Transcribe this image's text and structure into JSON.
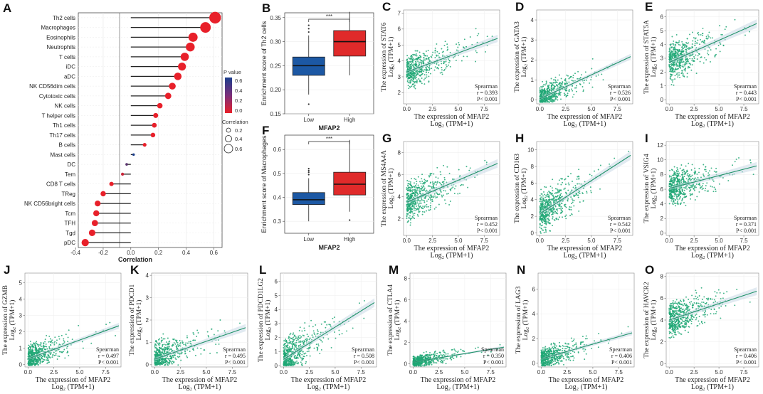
{
  "colors": {
    "point": "#1fa774",
    "trend": "#1f9268",
    "band": "#c8d9e6",
    "low_box": "#1c58a4",
    "high_box": "#e02a2a",
    "pval_low": "#e8202a",
    "pval_high": "#1b3e8c",
    "stem": "#222222"
  },
  "panel_a": {
    "letter": "A",
    "xlabel": "Correlation",
    "xticks": [
      "-0.4",
      "-0.2",
      "0.0",
      "0.2",
      "0.4",
      "0.6"
    ],
    "legend_pvalue_title": "P value",
    "legend_pvalue_ticks": [
      "0.6",
      "0.4",
      "0.2",
      "0.0"
    ],
    "legend_corr_title": "Correlation",
    "legend_corr_ticks": [
      "0.2",
      "0.4",
      "0.6"
    ]
  },
  "box_panels": [
    {
      "letter": "B",
      "ylabel": "Enrichment score of Th2 cells",
      "xlabel": "MFAP2",
      "yticks": [
        "0.15",
        "0.20",
        "0.25",
        "0.30",
        "0.35"
      ],
      "groups": [
        "Low",
        "High"
      ],
      "sig": "***"
    },
    {
      "letter": "F",
      "ylabel": "Enrichment score of Macrophages",
      "xlabel": "MFAP2",
      "yticks": [
        "0.3",
        "0.4",
        "0.5",
        "0.6"
      ],
      "groups": [
        "Low",
        "High"
      ],
      "sig": "***"
    }
  ],
  "scatter_common": {
    "xlabel": "The expression  of MFAP2",
    "unit": "Log₂ (TPM+1)",
    "ylabel_prefix": "The expression  of ",
    "method": "Spearman"
  },
  "scatter_panels": [
    {
      "letter": "C",
      "gene": "STAT6",
      "r": "r = 0.393",
      "p": "P< 0.001",
      "xticks": [
        "0.0",
        "2.5",
        "5.0",
        "7.5"
      ],
      "yticks": [
        "2",
        "3",
        "4",
        "5",
        "6",
        "7"
      ]
    },
    {
      "letter": "D",
      "gene": "GATA3",
      "r": "r = 0.526",
      "p": "P< 0.001",
      "xticks": [
        "0.0",
        "2.5",
        "5.0",
        "7.5"
      ],
      "yticks": [
        "0",
        "1",
        "2",
        "3",
        "4"
      ]
    },
    {
      "letter": "E",
      "gene": "STAT5A",
      "r": "r = 0.443",
      "p": "P< 0.001",
      "xticks": [
        "0.0",
        "2.5",
        "5.0",
        "7.5"
      ],
      "yticks": [
        "0",
        "1",
        "2",
        "3",
        "4",
        "5",
        "6"
      ]
    },
    {
      "letter": "G",
      "gene": "MS4A4A",
      "r": "r = 0.452",
      "p": "P< 0.001",
      "xticks": [
        "0.0",
        "2.5",
        "5.0",
        "7.5"
      ],
      "yticks": [
        "2",
        "4",
        "6",
        "8"
      ]
    },
    {
      "letter": "H",
      "gene": "CD163",
      "r": "r = 0.542",
      "p": "P< 0.001",
      "xticks": [
        "0.0",
        "2.5",
        "5.0",
        "7.5"
      ],
      "yticks": [
        "0",
        "2",
        "4",
        "6",
        "8",
        "10"
      ]
    },
    {
      "letter": "I",
      "gene": "VSIG4",
      "r": "r = 0.371",
      "p": "P< 0.001",
      "xticks": [
        "0.0",
        "2.5",
        "5.0",
        "7.5"
      ],
      "yticks": [
        "0",
        "2",
        "4",
        "6",
        "8",
        "10",
        "12"
      ]
    },
    {
      "letter": "J",
      "gene": "GZMB",
      "r": "r = 0.497",
      "p": "P< 0.001",
      "xticks": [
        "0.0",
        "2.5",
        "5.0",
        "7.5"
      ],
      "yticks": [
        "0",
        "1",
        "2",
        "3",
        "4",
        "5"
      ]
    },
    {
      "letter": "K",
      "gene": "PDCD1",
      "r": "r = 0.495",
      "p": "P< 0.001",
      "xticks": [
        "0.0",
        "2.5",
        "5.0",
        "7.5"
      ],
      "yticks": [
        "0",
        "1",
        "2",
        "3",
        "4"
      ]
    },
    {
      "letter": "L",
      "gene": "PDCD1LG2",
      "r": "r = 0.508",
      "p": "P< 0.001",
      "xticks": [
        "0.0",
        "2.5",
        "5.0",
        "7.5"
      ],
      "yticks": [
        "0",
        "1",
        "2",
        "3",
        "4",
        "5",
        "6"
      ]
    },
    {
      "letter": "M",
      "gene": "CTLA4",
      "r": "r = 0.350",
      "p": "P< 0.001",
      "xticks": [
        "0.0",
        "2.5",
        "5.0",
        "7.5"
      ],
      "yticks": [
        "0",
        "2",
        "4",
        "6",
        "8"
      ]
    },
    {
      "letter": "N",
      "gene": "LAG3",
      "r": "r = 0.406",
      "p": "P< 0.001",
      "xticks": [
        "0.0",
        "2.5",
        "5.0",
        "7.5"
      ],
      "yticks": [
        "0",
        "2",
        "4",
        "6"
      ]
    },
    {
      "letter": "O",
      "gene": "HAVCR2",
      "r": "r = 0.406",
      "p": "P< 0.001",
      "xticks": [
        "0.0",
        "2.5",
        "5.0",
        "7.5"
      ],
      "yticks": [
        "0",
        "2",
        "4",
        "6",
        "8"
      ]
    }
  ],
  "chart_data": [
    {
      "panel": "A",
      "type": "lollipop",
      "xlabel": "Correlation",
      "xlim": [
        -0.38,
        0.66
      ],
      "categories": [
        "Th2 cells",
        "Macrophages",
        "Eosinophils",
        "Neutrophils",
        "T cells",
        "iDC",
        "aDC",
        "NK CD56dim cells",
        "Cytotoxic cells",
        "NK cells",
        "T helper cells",
        "Th1 cells",
        "Th17 cells",
        "B cells",
        "Mast cells",
        "DC",
        "Tem",
        "CD8 T cells",
        "TReg",
        "NK CD56bright cells",
        "Tcm",
        "TFH",
        "Tgd",
        "pDC"
      ],
      "values": [
        0.61,
        0.54,
        0.45,
        0.43,
        0.39,
        0.37,
        0.34,
        0.3,
        0.27,
        0.21,
        0.18,
        0.17,
        0.16,
        0.1,
        0.02,
        -0.03,
        -0.06,
        -0.14,
        -0.2,
        -0.24,
        -0.25,
        -0.26,
        -0.28,
        -0.33
      ],
      "pvalues": [
        0,
        0,
        0,
        0,
        0,
        0,
        0,
        0,
        0,
        0,
        0,
        0,
        0,
        0.001,
        0.65,
        0.45,
        0.1,
        0.001,
        0,
        0,
        0,
        0,
        0,
        0
      ]
    },
    {
      "panel": "B",
      "type": "box",
      "title": "",
      "xlabel": "MFAP2",
      "ylabel": "Enrichment score of Th2 cells",
      "ylim": [
        0.15,
        0.36
      ],
      "categories": [
        "Low",
        "High"
      ],
      "series": [
        {
          "name": "Low",
          "min": 0.19,
          "q1": 0.23,
          "median": 0.25,
          "q3": 0.268,
          "max": 0.313,
          "outliers": [
            0.17,
            0.32,
            0.327,
            0.334
          ]
        },
        {
          "name": "High",
          "min": 0.23,
          "q1": 0.27,
          "median": 0.3,
          "q3": 0.323,
          "max": 0.362,
          "outliers": []
        }
      ]
    },
    {
      "panel": "F",
      "type": "box",
      "title": "",
      "xlabel": "MFAP2",
      "ylabel": "Enrichment score of Macrophages",
      "ylim": [
        0.25,
        0.66
      ],
      "categories": [
        "Low",
        "High"
      ],
      "series": [
        {
          "name": "Low",
          "min": 0.3,
          "q1": 0.37,
          "median": 0.39,
          "q3": 0.42,
          "max": 0.48,
          "outliers": [
            0.495,
            0.505,
            0.512,
            0.52
          ]
        },
        {
          "name": "High",
          "min": 0.34,
          "q1": 0.41,
          "median": 0.455,
          "q3": 0.505,
          "max": 0.64,
          "outliers": [
            0.305
          ]
        }
      ]
    },
    {
      "panel": "C",
      "type": "scatter",
      "title": "STAT6",
      "xlim": [
        -0.3,
        9
      ],
      "ylim": [
        1.3,
        7.2
      ],
      "n": 520,
      "x_scale": 1.8,
      "a": 3.3,
      "b": 0.24,
      "sd": 0.7,
      "rho": 0.393
    },
    {
      "panel": "D",
      "type": "scatter",
      "title": "GATA3",
      "xlim": [
        -0.3,
        9
      ],
      "ylim": [
        -0.2,
        4.5
      ],
      "n": 520,
      "x_scale": 1.5,
      "a": 0.05,
      "b": 0.24,
      "sd": 0.45,
      "rho": 0.526
    },
    {
      "panel": "E",
      "type": "scatter",
      "title": "STAT5A",
      "xlim": [
        -0.3,
        9
      ],
      "ylim": [
        -0.3,
        6.5
      ],
      "n": 520,
      "x_scale": 1.8,
      "a": 2.7,
      "b": 0.32,
      "sd": 0.95,
      "rho": 0.443
    },
    {
      "panel": "G",
      "type": "scatter",
      "title": "MS4A4A",
      "xlim": [
        -0.3,
        9
      ],
      "ylim": [
        0.5,
        9
      ],
      "n": 560,
      "x_scale": 1.8,
      "a": 3.5,
      "b": 0.4,
      "sd": 1.2,
      "rho": 0.452
    },
    {
      "panel": "H",
      "type": "scatter",
      "title": "CD163",
      "xlim": [
        -0.3,
        9
      ],
      "ylim": [
        -0.3,
        11
      ],
      "n": 560,
      "x_scale": 1.8,
      "a": 2.3,
      "b": 0.8,
      "sd": 1.6,
      "rho": 0.542
    },
    {
      "panel": "I",
      "type": "scatter",
      "title": "VSIG4",
      "xlim": [
        -0.3,
        9
      ],
      "ylim": [
        -0.3,
        12.5
      ],
      "n": 560,
      "x_scale": 1.8,
      "a": 6.1,
      "b": 0.35,
      "sd": 1.6,
      "rho": 0.371
    },
    {
      "panel": "J",
      "type": "scatter",
      "title": "GZMB",
      "xlim": [
        -0.3,
        9
      ],
      "ylim": [
        -0.15,
        5.6
      ],
      "n": 540,
      "x_scale": 1.4,
      "a": 0.35,
      "b": 0.23,
      "sd": 0.55,
      "rho": 0.497
    },
    {
      "panel": "K",
      "type": "scatter",
      "title": "PDCD1",
      "xlim": [
        -0.3,
        9
      ],
      "ylim": [
        -0.1,
        4.1
      ],
      "n": 540,
      "x_scale": 1.5,
      "a": 0.25,
      "b": 0.16,
      "sd": 0.5,
      "rho": 0.495
    },
    {
      "panel": "L",
      "type": "scatter",
      "title": "PDCD1LG2",
      "xlim": [
        -0.3,
        9
      ],
      "ylim": [
        -0.1,
        6.6
      ],
      "n": 560,
      "x_scale": 1.6,
      "a": 0.45,
      "b": 0.46,
      "sd": 0.95,
      "rho": 0.508
    },
    {
      "panel": "M",
      "type": "scatter",
      "title": "CTLA4",
      "xlim": [
        -0.3,
        9
      ],
      "ylim": [
        -0.3,
        8.5
      ],
      "n": 540,
      "x_scale": 1.5,
      "a": 0.15,
      "b": 0.16,
      "sd": 0.4,
      "rho": 0.35
    },
    {
      "panel": "N",
      "type": "scatter",
      "title": "LAG3",
      "xlim": [
        -0.3,
        9
      ],
      "ylim": [
        -0.3,
        7.3
      ],
      "n": 540,
      "x_scale": 1.6,
      "a": 0.35,
      "b": 0.24,
      "sd": 0.6,
      "rho": 0.406
    },
    {
      "panel": "O",
      "type": "scatter",
      "title": "HAVCR2",
      "xlim": [
        -0.3,
        9
      ],
      "ylim": [
        -0.3,
        8.3
      ],
      "n": 560,
      "x_scale": 1.8,
      "a": 4.0,
      "b": 0.3,
      "sd": 1.1,
      "rho": 0.406
    }
  ]
}
